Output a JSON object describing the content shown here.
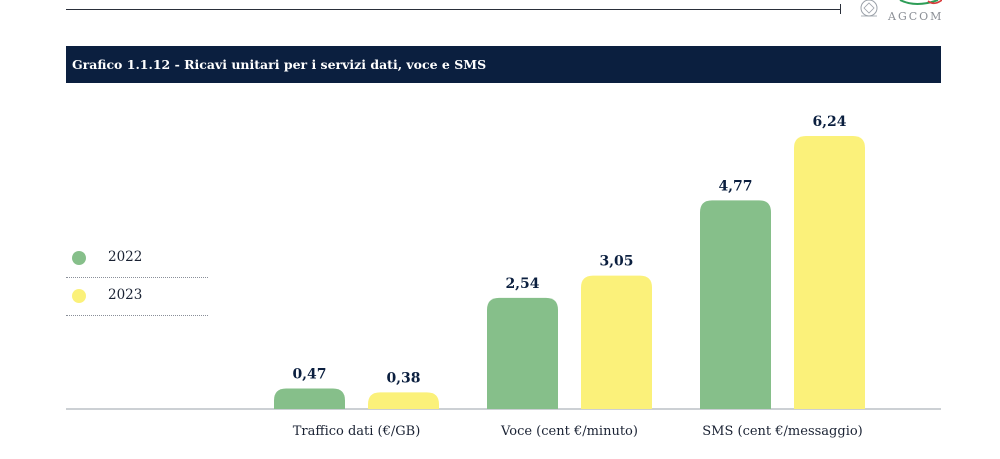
{
  "header": {
    "logo_text": "AGCOM"
  },
  "title": "Grafico 1.1.12 - Ricavi unitari per i servizi dati, voce e SMS",
  "chart_data": {
    "type": "bar",
    "title": "Grafico 1.1.12 - Ricavi unitari per i servizi dati, voce e SMS",
    "xlabel": "",
    "ylabel": "",
    "categories": [
      "Traffico dati (€/GB)",
      "Voce (cent €/minuto)",
      "SMS (cent €/messaggio)"
    ],
    "series": [
      {
        "name": "2022",
        "values": [
          0.47,
          2.54,
          4.77
        ],
        "labels": [
          "0,47",
          "2,54",
          "4,77"
        ],
        "color": "#86bf8a"
      },
      {
        "name": "2023",
        "values": [
          0.38,
          3.05,
          6.24
        ],
        "labels": [
          "0,38",
          "3,05",
          "6,24"
        ],
        "color": "#fbf17a"
      }
    ],
    "ylim": [
      0,
      6.24
    ],
    "grid": false,
    "legend_position": "left"
  }
}
